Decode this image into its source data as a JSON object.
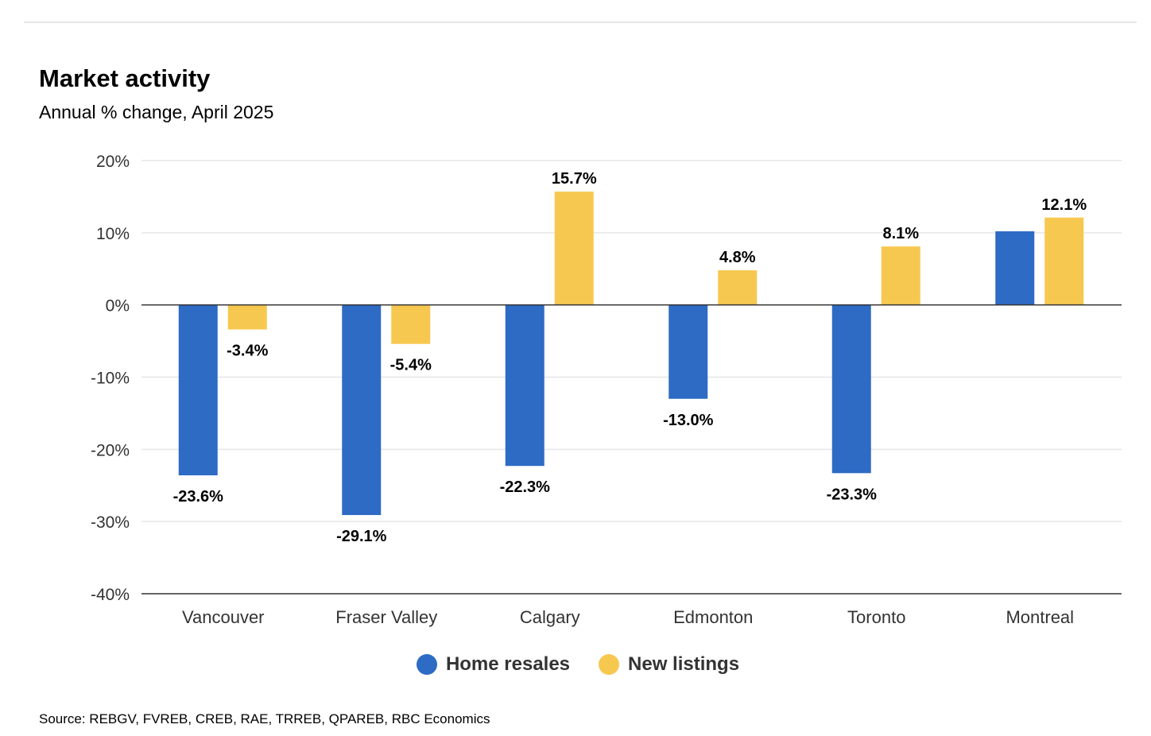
{
  "header": {
    "title": "Market activity",
    "subtitle": "Annual % change, April 2025"
  },
  "footer": {
    "source": "Source: REBGV, FVREB, CREB, RAE, TRREB, QPAREB, RBC Economics"
  },
  "colors": {
    "home_resales": "#2d6bc4",
    "new_listings": "#f7c850",
    "grid": "#e6e6e6",
    "axis": "#333333"
  },
  "chart_data": {
    "type": "bar",
    "title": "Market activity",
    "subtitle": "Annual % change, April 2025",
    "categories": [
      "Vancouver",
      "Fraser Valley",
      "Calgary",
      "Edmonton",
      "Toronto",
      "Montreal"
    ],
    "series": [
      {
        "name": "Home resales",
        "values": [
          -23.6,
          -29.1,
          -22.3,
          -13.0,
          -23.3,
          10.2
        ],
        "labels": [
          "-23.6%",
          "-29.1%",
          "-22.3%",
          "-13.0%",
          "-23.3%",
          ""
        ]
      },
      {
        "name": "New listings",
        "values": [
          -3.4,
          -5.4,
          15.7,
          4.8,
          8.1,
          12.1
        ],
        "labels": [
          "-3.4%",
          "-5.4%",
          "15.7%",
          "4.8%",
          "8.1%",
          "12.1%"
        ]
      }
    ],
    "ylim": [
      -40,
      20
    ],
    "yticks": [
      20,
      10,
      0,
      -10,
      -20,
      -30,
      -40
    ],
    "ytick_labels": [
      "20%",
      "10%",
      "0%",
      "-10%",
      "-20%",
      "-30%",
      "-40%"
    ],
    "grid": true,
    "legend": "bottom-center"
  }
}
